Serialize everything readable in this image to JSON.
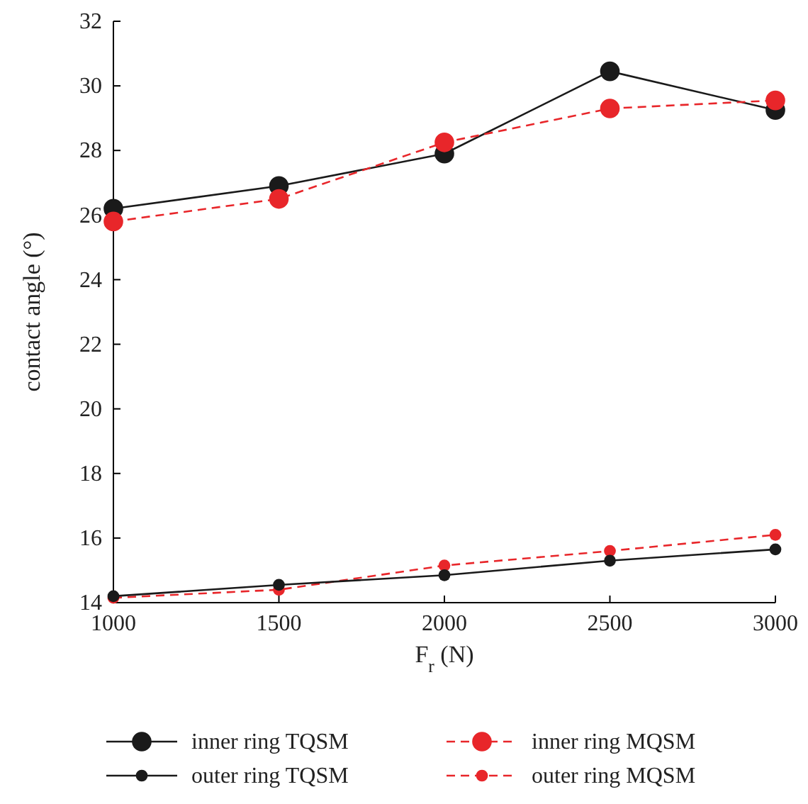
{
  "chart_data": {
    "type": "line",
    "xlabel": "F$_{r}$ (N)",
    "ylabel": "contact angle (°)",
    "x": [
      1000,
      1500,
      2000,
      2500,
      3000
    ],
    "xlim": [
      1000,
      3000
    ],
    "xticks": [
      1000,
      1500,
      2000,
      2500,
      3000
    ],
    "ylim": [
      14,
      32
    ],
    "yticks": [
      14,
      16,
      18,
      20,
      22,
      24,
      26,
      28,
      30,
      32
    ],
    "grid": false,
    "legend": "bottom",
    "marker": "circle",
    "series": [
      {
        "name": "inner ring TQSM",
        "color": "#1a1a1a",
        "line_style": "solid",
        "values": [
          26.2,
          26.9,
          27.9,
          30.45,
          29.25
        ]
      },
      {
        "name": "inner ring MQSM",
        "color": "#e8262a",
        "line_style": "dashed",
        "values": [
          25.8,
          26.5,
          28.25,
          29.3,
          29.55
        ]
      },
      {
        "name": "outer ring TQSM",
        "color": "#1a1a1a",
        "line_style": "solid",
        "values": [
          14.2,
          14.55,
          14.85,
          15.3,
          15.65
        ]
      },
      {
        "name": "outer ring MQSM",
        "color": "#e8262a",
        "line_style": "dashed",
        "values": [
          14.15,
          14.4,
          15.15,
          15.6,
          16.1
        ]
      }
    ]
  }
}
